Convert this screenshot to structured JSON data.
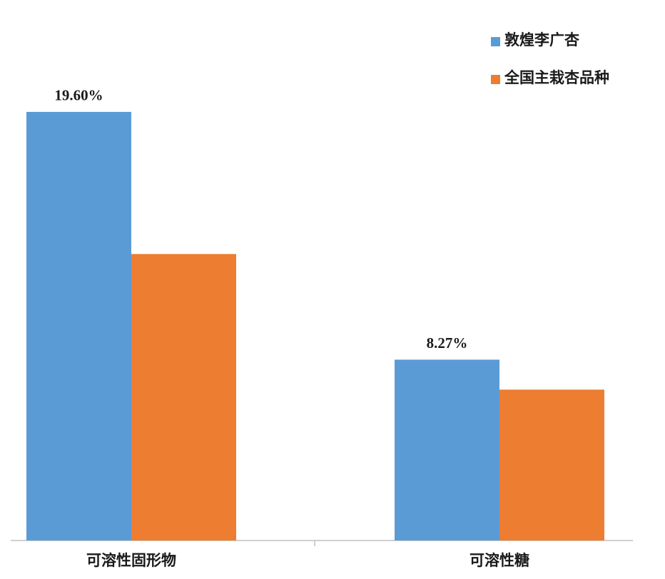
{
  "chart_data": {
    "type": "bar",
    "categories": [
      "可溶性固形物",
      "可溶性糖"
    ],
    "series": [
      {
        "name": "敦煌李广杏",
        "color": "#5b9bd5",
        "values": [
          19.6,
          8.27
        ],
        "value_labels": [
          "19.60%",
          "8.27%"
        ]
      },
      {
        "name": "全国主栽杏品种",
        "color": "#ed7d31",
        "values": [
          13.1,
          6.9
        ]
      }
    ],
    "ylim": [
      0,
      24
    ],
    "legend": "upper right"
  }
}
